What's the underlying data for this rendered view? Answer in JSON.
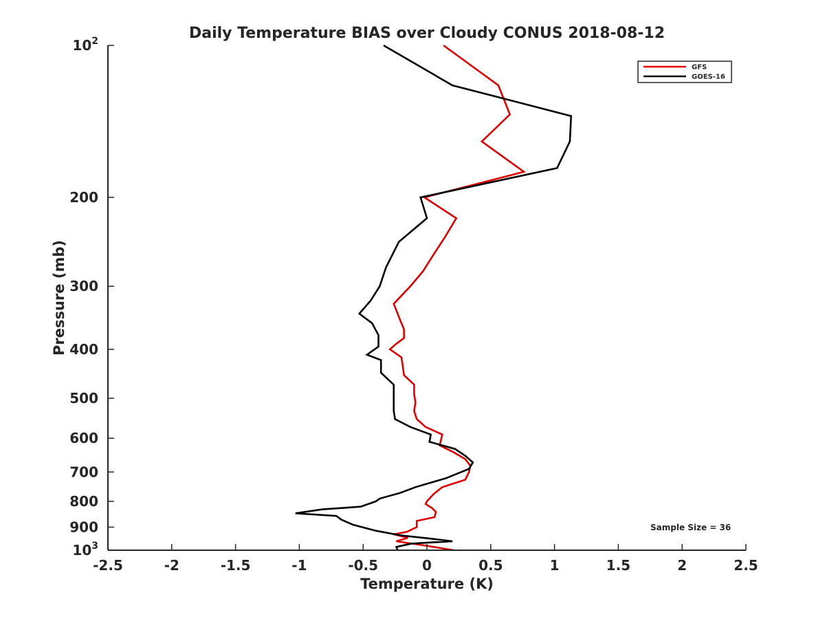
{
  "chart_data": {
    "type": "line",
    "title": "Daily Temperature BIAS over Cloudy CONUS 2018-08-12",
    "xlabel": "Temperature (K)",
    "ylabel": "Pressure (mb)",
    "xlim": [
      -2.5,
      2.5
    ],
    "ylim": [
      100,
      1000
    ],
    "y_scale": "log",
    "y_reversed": true,
    "x_ticks": [
      -2.5,
      -2,
      -1.5,
      -1,
      -0.5,
      0,
      0.5,
      1,
      1.5,
      2,
      2.5
    ],
    "x_tick_labels": [
      "-2.5",
      "-2",
      "-1.5",
      "-1",
      "-0.5",
      "0",
      "0.5",
      "1",
      "1.5",
      "2",
      "2.5"
    ],
    "y_ticks": [
      100,
      200,
      300,
      400,
      500,
      600,
      700,
      800,
      900,
      1000
    ],
    "y_tick_labels": [
      "10^2",
      "200",
      "300",
      "400",
      "500",
      "600",
      "700",
      "800",
      "900",
      "10^3"
    ],
    "grid": false,
    "legend_placement": "top-right",
    "annotation": "Sample Size = 36",
    "series": [
      {
        "name": "GFS",
        "color": "#e00000",
        "x": [
          0.13,
          0.56,
          0.65,
          0.43,
          0.76,
          -0.02,
          0.23,
          0.14,
          0.05,
          -0.03,
          -0.13,
          -0.26,
          -0.21,
          -0.18,
          -0.18,
          -0.24,
          -0.29,
          -0.2,
          -0.19,
          -0.18,
          -0.1,
          -0.1,
          -0.09,
          -0.1,
          -0.08,
          -0.01,
          0.12,
          0.11,
          0.1,
          0.21,
          0.3,
          0.34,
          0.33,
          0.3,
          0.12,
          0.05,
          0.0,
          -0.01,
          0.04,
          0.07,
          0.06,
          -0.08,
          -0.08,
          -0.16,
          -0.26,
          -0.15,
          -0.24,
          0.0,
          0.21
        ],
        "y": [
          100,
          120,
          137,
          155,
          178,
          200,
          220,
          240,
          260,
          280,
          300,
          325,
          350,
          365,
          380,
          390,
          400,
          415,
          430,
          450,
          470,
          490,
          510,
          530,
          550,
          570,
          590,
          605,
          620,
          640,
          660,
          680,
          700,
          725,
          750,
          775,
          800,
          810,
          825,
          840,
          860,
          875,
          900,
          920,
          930,
          945,
          960,
          980,
          1000
        ]
      },
      {
        "name": "GOES-16",
        "color": "#000000",
        "x": [
          -0.34,
          0.2,
          1.13,
          1.12,
          1.02,
          -0.05,
          0.0,
          -0.22,
          -0.32,
          -0.37,
          -0.44,
          -0.53,
          -0.43,
          -0.38,
          -0.38,
          -0.47,
          -0.36,
          -0.36,
          -0.26,
          -0.26,
          -0.26,
          -0.26,
          -0.25,
          -0.13,
          0.03,
          0.02,
          0.22,
          0.3,
          0.36,
          0.33,
          0.15,
          -0.09,
          -0.21,
          -0.37,
          -0.4,
          -0.52,
          -0.82,
          -1.03,
          -0.71,
          -0.67,
          -0.58,
          -0.4,
          -0.2,
          0.05,
          0.2,
          -0.12,
          -0.24,
          -0.23
        ],
        "y": [
          100,
          120,
          138,
          155,
          175,
          200,
          220,
          245,
          275,
          300,
          320,
          340,
          355,
          375,
          395,
          410,
          420,
          445,
          470,
          490,
          510,
          530,
          550,
          570,
          590,
          610,
          630,
          650,
          670,
          690,
          720,
          750,
          770,
          790,
          800,
          820,
          830,
          845,
          855,
          870,
          890,
          915,
          935,
          950,
          960,
          970,
          985,
          1000
        ]
      }
    ]
  }
}
